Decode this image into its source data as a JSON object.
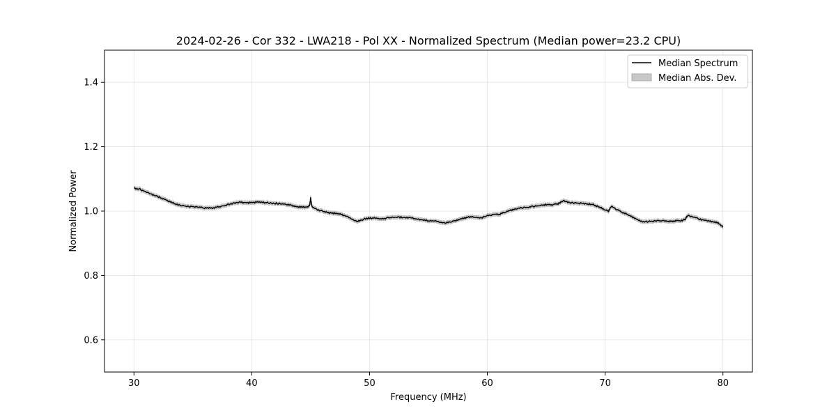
{
  "chart_data": {
    "type": "line",
    "title": "2024-02-26 - Cor 332 - LWA218 - Pol XX - Normalized Spectrum (Median power=23.2 CPU)",
    "xlabel": "Frequency (MHz)",
    "ylabel": "Normalized Power",
    "xlim": [
      27.5,
      82.5
    ],
    "ylim": [
      0.5,
      1.5
    ],
    "xticks": [
      30,
      40,
      50,
      60,
      70,
      80
    ],
    "xtick_labels": [
      "30",
      "40",
      "50",
      "60",
      "70",
      "80"
    ],
    "yticks": [
      0.6,
      0.8,
      1.0,
      1.2,
      1.4
    ],
    "ytick_labels": [
      "0.6",
      "0.8",
      "1.0",
      "1.2",
      "1.4"
    ],
    "grid": true,
    "legend_position": "top-right",
    "series": [
      {
        "name": "Median Spectrum",
        "kind": "line",
        "color": "#000000",
        "x": [
          30.0,
          30.5,
          31.0,
          31.5,
          32.0,
          32.5,
          33.0,
          33.5,
          34.0,
          34.5,
          35.0,
          35.5,
          36.0,
          36.5,
          37.0,
          37.5,
          38.0,
          38.5,
          39.0,
          39.5,
          40.0,
          40.5,
          41.0,
          41.5,
          42.0,
          42.5,
          43.0,
          43.5,
          44.0,
          44.5,
          44.9,
          45.0,
          45.1,
          45.5,
          46.0,
          46.5,
          47.0,
          47.5,
          48.0,
          48.5,
          49.0,
          49.5,
          50.0,
          50.5,
          51.0,
          51.5,
          52.0,
          52.5,
          53.0,
          53.5,
          54.0,
          54.5,
          55.0,
          55.5,
          56.0,
          56.5,
          57.0,
          57.5,
          58.0,
          58.5,
          59.0,
          59.5,
          60.0,
          60.5,
          61.0,
          61.5,
          62.0,
          62.5,
          63.0,
          63.5,
          64.0,
          64.5,
          65.0,
          65.5,
          66.0,
          66.5,
          67.0,
          67.5,
          68.0,
          68.5,
          69.0,
          69.5,
          70.0,
          70.3,
          70.5,
          71.0,
          71.5,
          72.0,
          72.5,
          73.0,
          73.5,
          74.0,
          74.5,
          75.0,
          75.5,
          76.0,
          76.5,
          76.8,
          77.0,
          77.5,
          78.0,
          78.5,
          79.0,
          79.5,
          80.0
        ],
        "values": [
          1.072,
          1.068,
          1.06,
          1.052,
          1.045,
          1.038,
          1.03,
          1.022,
          1.018,
          1.015,
          1.014,
          1.012,
          1.01,
          1.009,
          1.012,
          1.015,
          1.02,
          1.025,
          1.027,
          1.026,
          1.026,
          1.028,
          1.027,
          1.025,
          1.024,
          1.023,
          1.02,
          1.017,
          1.013,
          1.012,
          1.014,
          1.04,
          1.015,
          1.005,
          1.0,
          0.995,
          0.993,
          0.99,
          0.985,
          0.975,
          0.968,
          0.975,
          0.978,
          0.979,
          0.976,
          0.978,
          0.98,
          0.981,
          0.98,
          0.979,
          0.975,
          0.973,
          0.97,
          0.97,
          0.966,
          0.963,
          0.968,
          0.973,
          0.978,
          0.982,
          0.98,
          0.979,
          0.985,
          0.99,
          0.99,
          0.996,
          1.003,
          1.008,
          1.01,
          1.012,
          1.015,
          1.018,
          1.02,
          1.02,
          1.023,
          1.032,
          1.026,
          1.025,
          1.024,
          1.022,
          1.02,
          1.012,
          1.005,
          1.0,
          1.015,
          1.005,
          0.995,
          0.988,
          0.978,
          0.968,
          0.967,
          0.968,
          0.97,
          0.969,
          0.968,
          0.97,
          0.97,
          0.975,
          0.987,
          0.982,
          0.975,
          0.972,
          0.968,
          0.965,
          0.95
        ]
      },
      {
        "name": "Median Abs. Dev.",
        "kind": "band",
        "color": "#bdbdbd",
        "half_width": 0.006
      }
    ]
  }
}
